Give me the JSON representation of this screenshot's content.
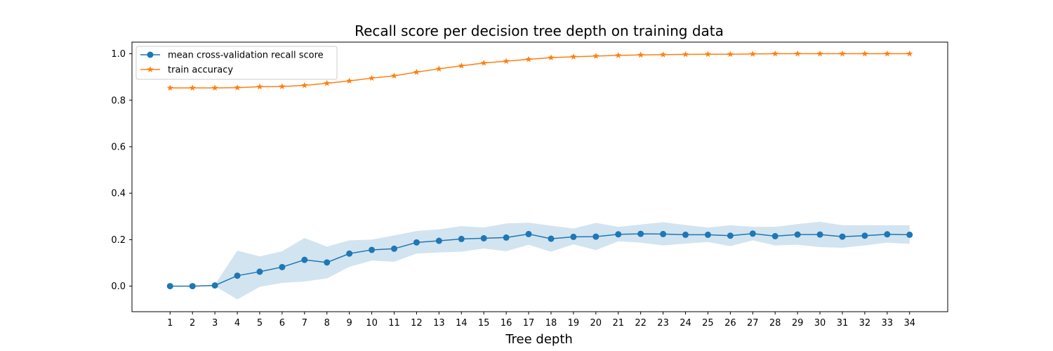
{
  "chart_data": {
    "type": "line",
    "title": "Recall score per decision tree depth on training data",
    "xlabel": "Tree depth",
    "ylabel": "",
    "x": [
      1,
      2,
      3,
      4,
      5,
      6,
      7,
      8,
      9,
      10,
      11,
      12,
      13,
      14,
      15,
      16,
      17,
      18,
      19,
      20,
      21,
      22,
      23,
      24,
      25,
      26,
      27,
      28,
      29,
      30,
      31,
      32,
      33,
      34
    ],
    "xlim": [
      -0.7,
      35.7
    ],
    "ylim": [
      -0.11,
      1.05
    ],
    "yticks": [
      0.0,
      0.2,
      0.4,
      0.6,
      0.8,
      1.0
    ],
    "ytick_labels": [
      "0.0",
      "0.2",
      "0.4",
      "0.6",
      "0.8",
      "1.0"
    ],
    "grid": false,
    "legend_position": "top-left",
    "series": [
      {
        "name": "mean cross-validation recall score",
        "color": "#1f77b4",
        "marker": "circle",
        "values": [
          0.0,
          0.0,
          0.003,
          0.045,
          0.062,
          0.082,
          0.113,
          0.102,
          0.14,
          0.156,
          0.161,
          0.188,
          0.195,
          0.203,
          0.206,
          0.209,
          0.224,
          0.204,
          0.212,
          0.213,
          0.223,
          0.225,
          0.224,
          0.221,
          0.221,
          0.217,
          0.226,
          0.215,
          0.222,
          0.222,
          0.213,
          0.217,
          0.223,
          0.221
        ],
        "band_upper": [
          0.0,
          0.0,
          0.006,
          0.153,
          0.128,
          0.15,
          0.207,
          0.17,
          0.197,
          0.2,
          0.218,
          0.237,
          0.244,
          0.258,
          0.252,
          0.27,
          0.273,
          0.26,
          0.248,
          0.272,
          0.255,
          0.265,
          0.275,
          0.263,
          0.252,
          0.262,
          0.255,
          0.255,
          0.267,
          0.277,
          0.262,
          0.262,
          0.262,
          0.262
        ],
        "band_lower": [
          0.0,
          0.0,
          0.0,
          -0.057,
          -0.003,
          0.014,
          0.02,
          0.033,
          0.083,
          0.11,
          0.105,
          0.14,
          0.145,
          0.148,
          0.162,
          0.15,
          0.178,
          0.148,
          0.18,
          0.155,
          0.193,
          0.187,
          0.175,
          0.183,
          0.19,
          0.172,
          0.197,
          0.175,
          0.178,
          0.168,
          0.165,
          0.175,
          0.187,
          0.182
        ]
      },
      {
        "name": "train accuracy",
        "color": "#ff7f0e",
        "marker": "star",
        "values": [
          0.853,
          0.853,
          0.853,
          0.854,
          0.858,
          0.859,
          0.864,
          0.873,
          0.883,
          0.895,
          0.905,
          0.921,
          0.935,
          0.948,
          0.96,
          0.968,
          0.976,
          0.983,
          0.987,
          0.99,
          0.993,
          0.995,
          0.996,
          0.997,
          0.998,
          0.998,
          0.999,
          1.0,
          1.0,
          1.0,
          1.0,
          1.0,
          1.0,
          1.0
        ]
      }
    ]
  }
}
